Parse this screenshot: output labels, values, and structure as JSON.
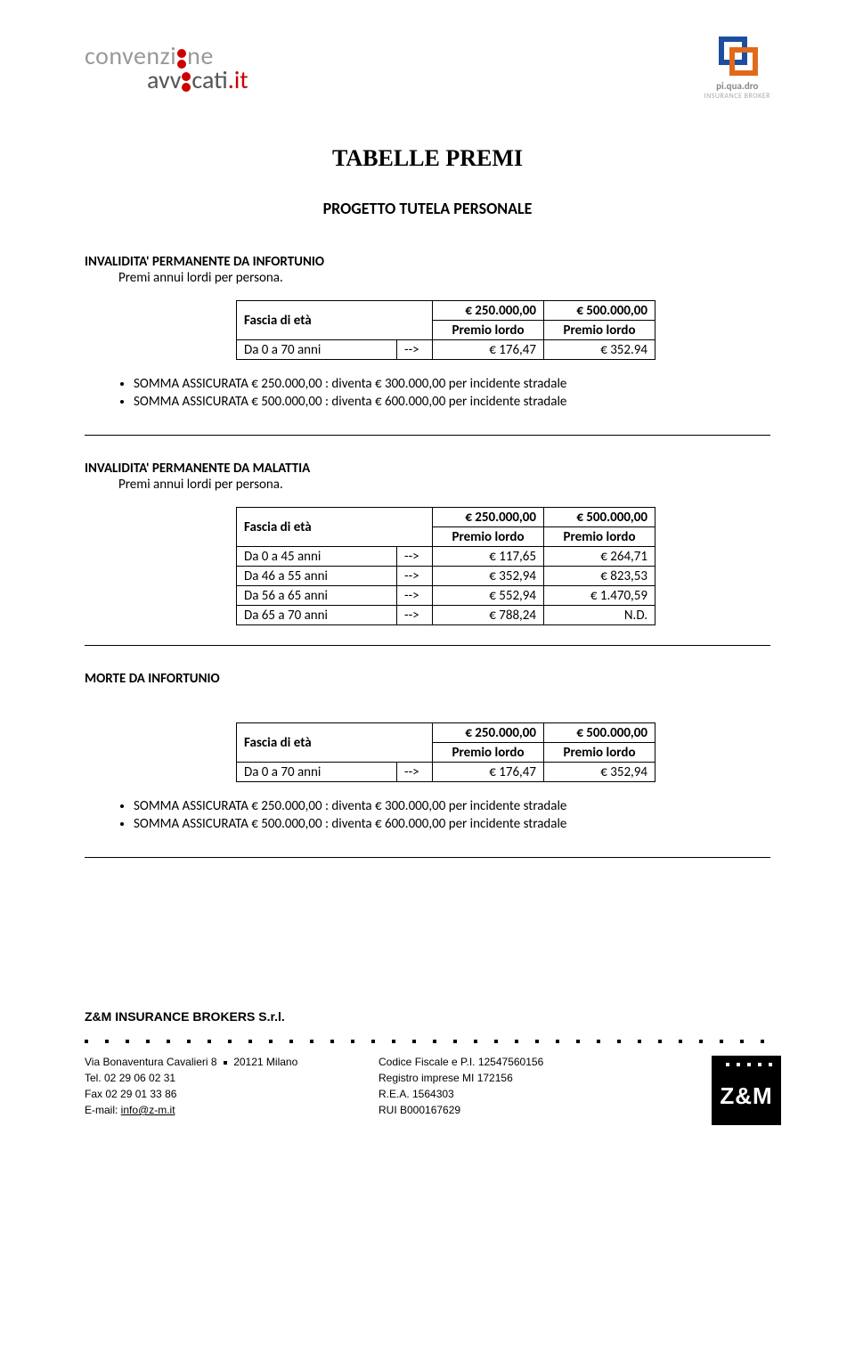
{
  "header": {
    "logo_left_top": "convenzi",
    "logo_left_top2": "ne",
    "logo_left_bottom_pre": "avv",
    "logo_left_bottom_post": "cati",
    "logo_left_ext": ".it",
    "logo_right_brand": "pi.qua.dro",
    "logo_right_sub": "INSURANCE BROKER"
  },
  "title": "TABELLE PREMI",
  "progetto": "PROGETTO TUTELA PERSONALE",
  "colors": {
    "text": "#000000",
    "background": "#ffffff",
    "logo_red": "#cc0000",
    "logo_gray": "#999999",
    "pq_blue": "#1e4ea0",
    "pq_orange": "#e06a1c"
  },
  "sections": [
    {
      "title": "INVALIDITA' PERMANENTE DA INFORTUNIO",
      "sub": "Premi annui lordi per persona.",
      "sub_indent": true,
      "table": {
        "fascia_label": "Fascia di età",
        "head_vals": [
          "€ 250.000,00",
          "€ 500.000,00"
        ],
        "head_subs": [
          "Premio lordo",
          "Premio lordo"
        ],
        "rows": [
          {
            "label": "Da 0 a 70 anni",
            "arrow": "-->",
            "vals": [
              "€ 176,47",
              "€ 352.94"
            ]
          }
        ]
      },
      "bullets": [
        "SOMMA ASSICURATA € 250.000,00 : diventa € 300.000,00 per incidente stradale",
        "SOMMA ASSICURATA € 500.000,00 : diventa € 600.000,00 per incidente stradale"
      ]
    },
    {
      "title": "INVALIDITA' PERMANENTE DA MALATTIA",
      "sub": "Premi annui lordi per persona.",
      "sub_indent": true,
      "table": {
        "fascia_label": "Fascia di età",
        "head_vals": [
          "€ 250.000,00",
          "€ 500.000,00"
        ],
        "head_subs": [
          "Premio lordo",
          "Premio lordo"
        ],
        "rows": [
          {
            "label": "Da 0   a 45 anni",
            "arrow": "-->",
            "vals": [
              "€ 117,65",
              "€ 264,71"
            ]
          },
          {
            "label": "Da 46 a 55 anni",
            "arrow": "-->",
            "vals": [
              "€ 352,94",
              "€ 823,53"
            ]
          },
          {
            "label": "Da 56 a 65 anni",
            "arrow": "-->",
            "vals": [
              "€ 552,94",
              "€ 1.470,59"
            ]
          },
          {
            "label": "Da 65 a 70 anni",
            "arrow": "-->",
            "vals": [
              "€ 788,24",
              "N.D."
            ]
          }
        ]
      },
      "bullets": []
    },
    {
      "title": "MORTE DA INFORTUNIO",
      "sub": "",
      "sub_indent": false,
      "table": {
        "fascia_label": "Fascia di età",
        "head_vals": [
          "€ 250.000,00",
          "€ 500.000,00"
        ],
        "head_subs": [
          "Premio lordo",
          "Premio lordo"
        ],
        "rows": [
          {
            "label": "Da 0 a 70 anni",
            "arrow": "-->",
            "vals": [
              "€ 176,47",
              "€ 352,94"
            ]
          }
        ]
      },
      "bullets": [
        "SOMMA ASSICURATA € 250.000,00 : diventa € 300.000,00 per incidente stradale",
        "SOMMA ASSICURATA € 500.000,00 : diventa € 600.000,00 per incidente stradale"
      ]
    }
  ],
  "footer": {
    "company": "Z&M INSURANCE BROKERS S.r.l.",
    "col1": {
      "line1_pre": "Via Bonaventura Cavalieri 8 ",
      "line1_post": " 20121 Milano",
      "line2": "Tel. 02 29 06 02 31",
      "line3": "Fax 02 29 01 33 86",
      "line4_pre": "E-mail: ",
      "line4_link": "info@z-m.it"
    },
    "col2": {
      "line1": "Codice Fiscale e P.I. 12547560156",
      "line2": "Registro imprese MI 172156",
      "line3": "R.E.A. 1564303",
      "line4": "RUI B000167629"
    },
    "zm": "Z&M"
  }
}
